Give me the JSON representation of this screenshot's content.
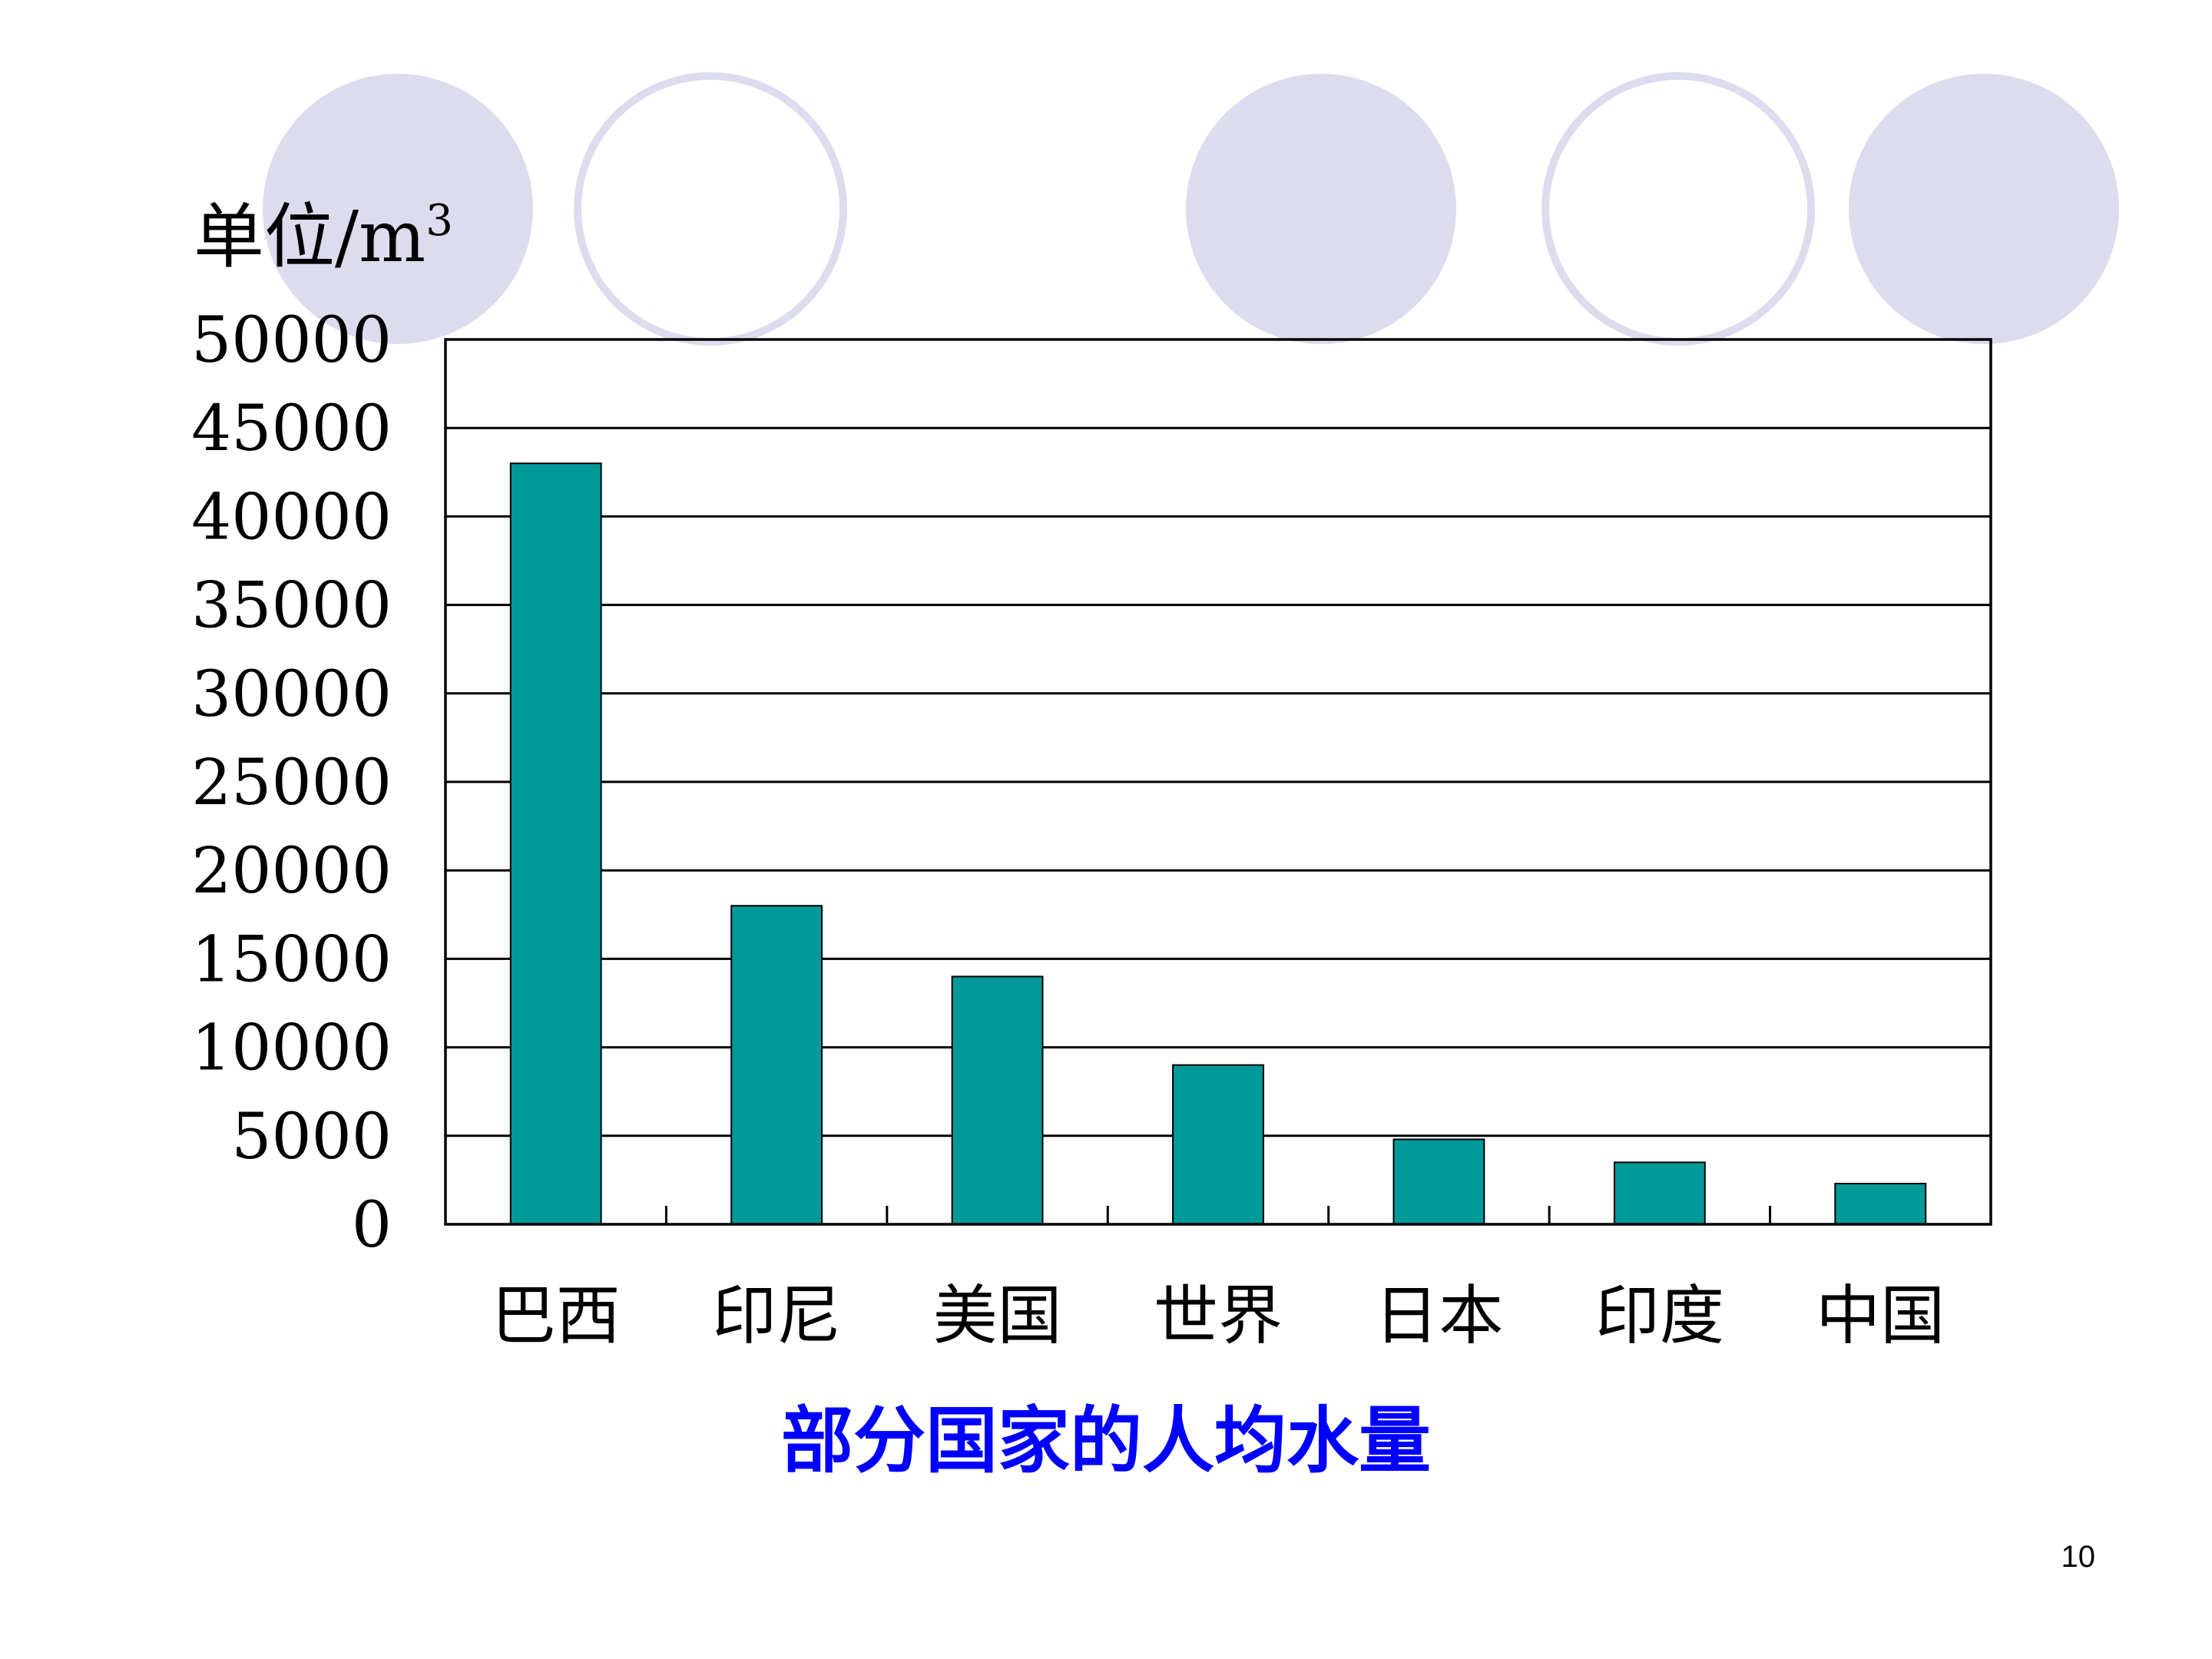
{
  "slide": {
    "page_number": "10"
  },
  "chart_data": {
    "type": "bar",
    "title": "部分国家的人均水量",
    "unit_label": "单位/m",
    "unit_superscript": "3",
    "categories": [
      "巴西",
      "印尼",
      "美国",
      "世界",
      "日本",
      "印度",
      "中国"
    ],
    "series": [
      {
        "name": "人均水量",
        "values": [
          43000,
          18000,
          14000,
          9000,
          4800,
          3500,
          2300
        ]
      }
    ],
    "ylim": [
      0,
      50000
    ],
    "ytick_step": 5000,
    "yticks": [
      "0",
      "5000",
      "10000",
      "15000",
      "20000",
      "25000",
      "30000",
      "35000",
      "40000",
      "45000",
      "50000"
    ],
    "grid": true,
    "legend": "none",
    "colors": {
      "bar": "#009999",
      "title": "#0000ff",
      "decoration": "#dcdcee"
    }
  }
}
